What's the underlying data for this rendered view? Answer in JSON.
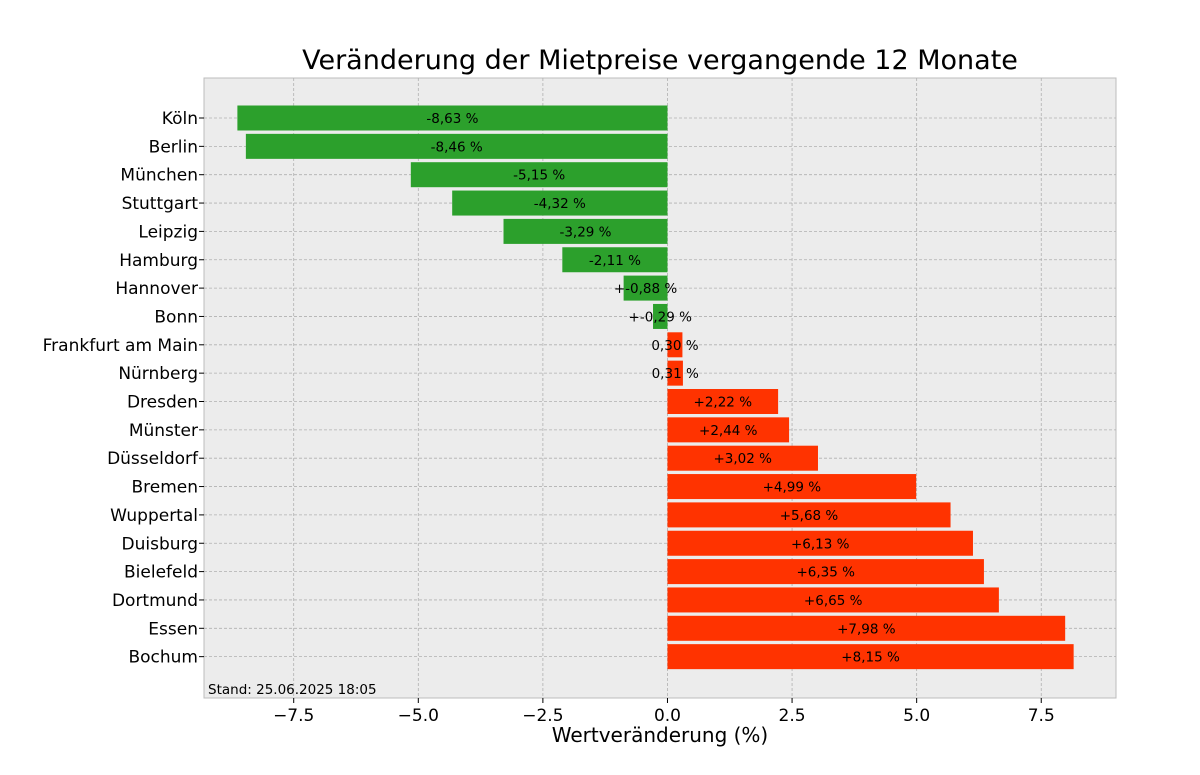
{
  "chart_data": {
    "type": "bar",
    "orientation": "horizontal",
    "title": "Veränderung der Mietpreise vergangende 12 Monate",
    "xlabel": "Wertveränderung (%)",
    "ylabel": "",
    "xlim": [
      -9.3,
      9.0
    ],
    "xticks": [
      -7.5,
      -5.0,
      -2.5,
      0.0,
      2.5,
      5.0,
      7.5
    ],
    "xtick_labels": [
      "−7.5",
      "−5.0",
      "−2.5",
      "0.0",
      "2.5",
      "5.0",
      "7.5"
    ],
    "grid": true,
    "categories": [
      "Köln",
      "Berlin",
      "München",
      "Stuttgart",
      "Leipzig",
      "Hamburg",
      "Hannover",
      "Bonn",
      "Frankfurt am Main",
      "Nürnberg",
      "Dresden",
      "Münster",
      "Düsseldorf",
      "Bremen",
      "Wuppertal",
      "Duisburg",
      "Bielefeld",
      "Dortmund",
      "Essen",
      "Bochum"
    ],
    "values": [
      -8.63,
      -8.46,
      -5.15,
      -4.32,
      -3.29,
      -2.11,
      -0.88,
      -0.29,
      0.3,
      0.31,
      2.22,
      2.44,
      3.02,
      4.99,
      5.68,
      6.13,
      6.35,
      6.65,
      7.98,
      8.15
    ],
    "data_labels": [
      "-8,63 %",
      "-8,46 %",
      "-5,15 %",
      "-4,32 %",
      "-3,29 %",
      "-2,11 %",
      "+-0,88 %",
      "+-0,29 %",
      "0,30 %",
      "0,31 %",
      "+2,22 %",
      "+2,44 %",
      "+3,02 %",
      "+4,99 %",
      "+5,68 %",
      "+6,13 %",
      "+6,35 %",
      "+6,65 %",
      "+7,98 %",
      "+8,15 %"
    ],
    "colors": {
      "negative": "#2ca02c",
      "positive": "#ff3300",
      "plot_background": "#ececec",
      "grid": "#b0b0b0"
    },
    "annotation": "Stand: 25.06.2025 18:05"
  }
}
